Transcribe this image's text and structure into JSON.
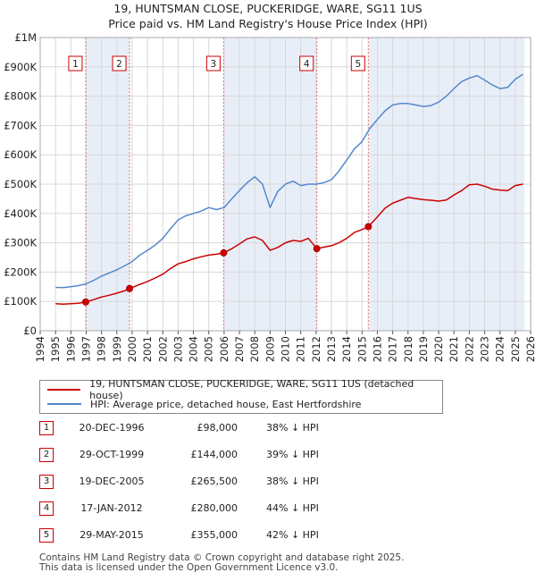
{
  "title": "19, HUNTSMAN CLOSE, PUCKERIDGE, WARE, SG11 1US",
  "subtitle": "Price paid vs. HM Land Registry's House Price Index (HPI)",
  "colors": {
    "property": "#cc0000",
    "hpi": "#5588cc",
    "band": "#e8eef8"
  },
  "chart_data": {
    "type": "line",
    "title": "19, HUNTSMAN CLOSE, PUCKERIDGE, WARE, SG11 1US",
    "subtitle": "Price paid vs. HM Land Registry's House Price Index (HPI)",
    "xlabel": "",
    "ylabel": "",
    "xlim": [
      1994,
      2026
    ],
    "ylim": [
      0,
      1000000
    ],
    "x_ticks": [
      "1994",
      "1995",
      "1996",
      "1997",
      "1998",
      "1999",
      "2000",
      "2001",
      "2002",
      "2003",
      "2004",
      "2005",
      "2006",
      "2007",
      "2008",
      "2009",
      "2010",
      "2011",
      "2012",
      "2013",
      "2014",
      "2015",
      "2016",
      "2017",
      "2018",
      "2019",
      "2020",
      "2021",
      "2022",
      "2023",
      "2024",
      "2025",
      "2026"
    ],
    "y_ticks": [
      {
        "value": 0,
        "label": "£0"
      },
      {
        "value": 100000,
        "label": "£100K"
      },
      {
        "value": 200000,
        "label": "£200K"
      },
      {
        "value": 300000,
        "label": "£300K"
      },
      {
        "value": 400000,
        "label": "£400K"
      },
      {
        "value": 500000,
        "label": "£500K"
      },
      {
        "value": 600000,
        "label": "£600K"
      },
      {
        "value": 700000,
        "label": "£700K"
      },
      {
        "value": 800000,
        "label": "£800K"
      },
      {
        "value": 900000,
        "label": "£900K"
      },
      {
        "value": 1000000,
        "label": "£1M"
      }
    ],
    "grid": true,
    "shaded_periods": [
      [
        1996.97,
        1999.83
      ],
      [
        2005.97,
        2012.05
      ],
      [
        2015.41,
        2025.6
      ]
    ],
    "series": [
      {
        "name": "19, HUNTSMAN CLOSE, PUCKERIDGE, WARE, SG11 1US (detached house)",
        "x": [
          1995.0,
          1995.5,
          1996.0,
          1996.5,
          1996.97,
          1997.5,
          1998.0,
          1998.5,
          1999.0,
          1999.5,
          1999.83,
          2000.5,
          2001.0,
          2001.5,
          2002.0,
          2002.5,
          2003.0,
          2003.5,
          2004.0,
          2004.5,
          2005.0,
          2005.5,
          2005.97,
          2006.5,
          2007.0,
          2007.5,
          2008.0,
          2008.5,
          2009.0,
          2009.5,
          2010.0,
          2010.5,
          2011.0,
          2011.5,
          2012.05,
          2012.5,
          2013.0,
          2013.5,
          2014.0,
          2014.5,
          2015.0,
          2015.41,
          2016.0,
          2016.5,
          2017.0,
          2017.5,
          2018.0,
          2018.5,
          2019.0,
          2019.5,
          2020.0,
          2020.5,
          2021.0,
          2021.5,
          2022.0,
          2022.5,
          2023.0,
          2023.5,
          2024.0,
          2024.5,
          2025.0,
          2025.5
        ],
        "values": [
          92000,
          91000,
          92000,
          94000,
          98000,
          106000,
          115000,
          121000,
          128000,
          136000,
          144000,
          158000,
          168000,
          180000,
          193000,
          212000,
          228000,
          236000,
          245000,
          252000,
          258000,
          261000,
          265500,
          280000,
          296000,
          313000,
          320000,
          308000,
          274000,
          284000,
          300000,
          308000,
          305000,
          315000,
          280000,
          285000,
          290000,
          300000,
          315000,
          335000,
          345000,
          355000,
          388000,
          418000,
          435000,
          445000,
          455000,
          451000,
          447000,
          445000,
          442000,
          446000,
          463000,
          478000,
          498000,
          500000,
          493000,
          483000,
          480000,
          478000,
          495000,
          500000
        ]
      },
      {
        "name": "HPI: Average price, detached house, East Hertfordshire",
        "x": [
          1995.0,
          1995.5,
          1996.0,
          1996.5,
          1997.0,
          1997.5,
          1998.0,
          1998.5,
          1999.0,
          1999.5,
          2000.0,
          2000.5,
          2001.0,
          2001.5,
          2002.0,
          2002.5,
          2003.0,
          2003.5,
          2004.0,
          2004.5,
          2005.0,
          2005.5,
          2006.0,
          2006.5,
          2007.0,
          2007.5,
          2008.0,
          2008.5,
          2009.0,
          2009.5,
          2010.0,
          2010.5,
          2011.0,
          2011.5,
          2012.0,
          2012.5,
          2013.0,
          2013.5,
          2014.0,
          2014.5,
          2015.0,
          2015.5,
          2016.0,
          2016.5,
          2017.0,
          2017.5,
          2018.0,
          2018.5,
          2019.0,
          2019.5,
          2020.0,
          2020.5,
          2021.0,
          2021.5,
          2022.0,
          2022.5,
          2023.0,
          2023.5,
          2024.0,
          2024.5,
          2025.0,
          2025.5
        ],
        "values": [
          148000,
          147000,
          150000,
          154000,
          160000,
          172000,
          186000,
          197000,
          208000,
          221000,
          236000,
          258000,
          274000,
          292000,
          315000,
          348000,
          378000,
          392000,
          400000,
          408000,
          420000,
          413000,
          420000,
          450000,
          478000,
          505000,
          525000,
          500000,
          420000,
          475000,
          500000,
          510000,
          495000,
          500000,
          500000,
          505000,
          515000,
          545000,
          582000,
          620000,
          645000,
          690000,
          720000,
          750000,
          770000,
          775000,
          775000,
          770000,
          765000,
          768000,
          780000,
          800000,
          826000,
          850000,
          862000,
          870000,
          855000,
          838000,
          826000,
          830000,
          858000,
          875000
        ]
      }
    ],
    "sales": [
      {
        "label": "1",
        "x": 1996.97,
        "value": 98000
      },
      {
        "label": "2",
        "x": 1999.83,
        "value": 144000
      },
      {
        "label": "3",
        "x": 2005.97,
        "value": 265500
      },
      {
        "label": "4",
        "x": 2012.05,
        "value": 280000
      },
      {
        "label": "5",
        "x": 2015.41,
        "value": 355000
      }
    ]
  },
  "legend": {
    "property_label": "19, HUNTSMAN CLOSE, PUCKERIDGE, WARE, SG11 1US (detached house)",
    "hpi_label": "HPI: Average price, detached house, East Hertfordshire"
  },
  "transactions": [
    {
      "num": "1",
      "date": "20-DEC-1996",
      "price": "£98,000",
      "hpi": "38% ↓ HPI"
    },
    {
      "num": "2",
      "date": "29-OCT-1999",
      "price": "£144,000",
      "hpi": "39% ↓ HPI"
    },
    {
      "num": "3",
      "date": "19-DEC-2005",
      "price": "£265,500",
      "hpi": "38% ↓ HPI"
    },
    {
      "num": "4",
      "date": "17-JAN-2012",
      "price": "£280,000",
      "hpi": "44% ↓ HPI"
    },
    {
      "num": "5",
      "date": "29-MAY-2015",
      "price": "£355,000",
      "hpi": "42% ↓ HPI"
    }
  ],
  "footer": {
    "line1": "Contains HM Land Registry data © Crown copyright and database right 2025.",
    "line2": "This data is licensed under the Open Government Licence v3.0."
  }
}
